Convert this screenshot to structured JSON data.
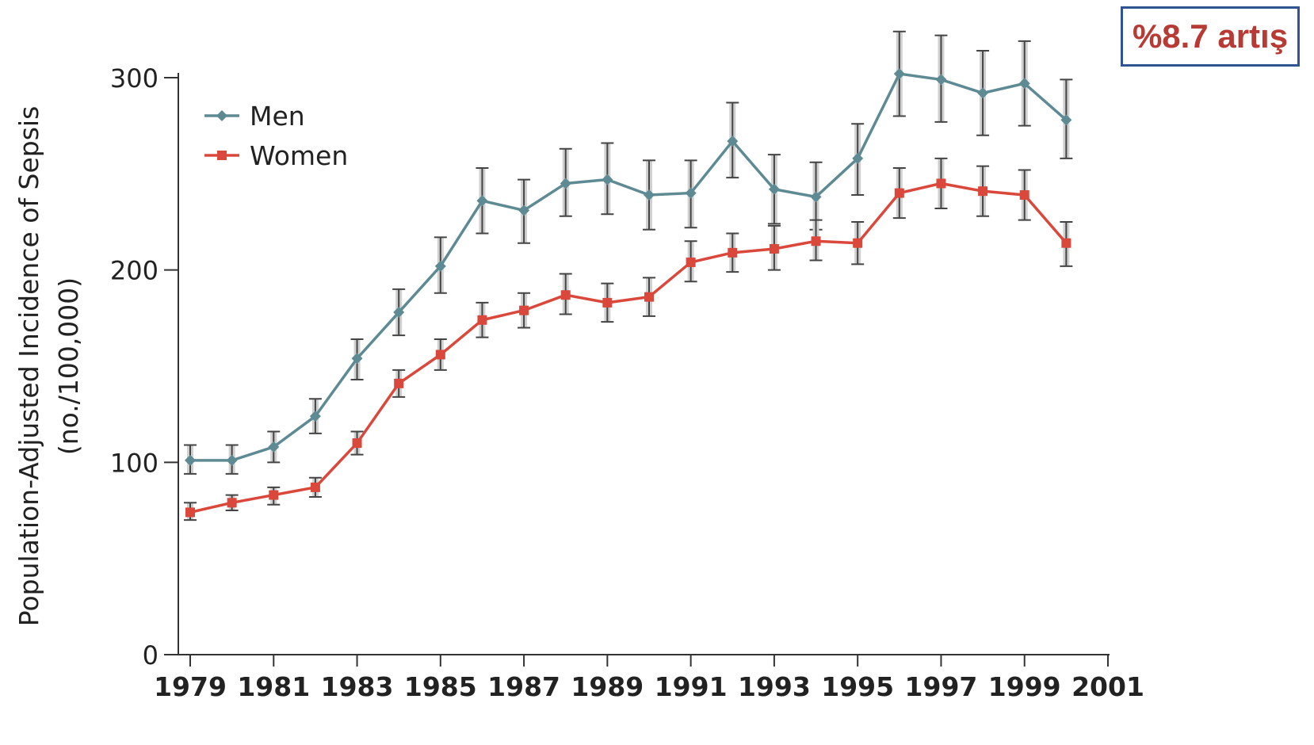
{
  "chart_data": {
    "type": "line",
    "title": "",
    "xlabel": "",
    "ylabel": "Population-Adjusted Incidence of Sepsis",
    "ylabel_line2": "(no./100,000)",
    "xlim": [
      1979,
      2001
    ],
    "ylim": [
      0,
      300
    ],
    "x_ticks": [
      1979,
      1981,
      1983,
      1985,
      1987,
      1989,
      1991,
      1993,
      1995,
      1997,
      1999,
      2001
    ],
    "y_ticks": [
      0,
      100,
      200,
      300
    ],
    "grid": false,
    "legend_position": "top-left",
    "x": [
      1979,
      1980,
      1981,
      1982,
      1983,
      1984,
      1985,
      1986,
      1987,
      1988,
      1989,
      1990,
      1991,
      1992,
      1993,
      1994,
      1995,
      1996,
      1997,
      1998,
      1999,
      2000
    ],
    "series": [
      {
        "name": "Men",
        "color": "#5e8a93",
        "marker": "diamond",
        "values": [
          101,
          101,
          108,
          124,
          154,
          178,
          202,
          236,
          231,
          245,
          247,
          239,
          240,
          267,
          242,
          238,
          258,
          302,
          299,
          292,
          297,
          278
        ],
        "err_low": [
          94,
          94,
          100,
          115,
          143,
          166,
          188,
          219,
          214,
          228,
          229,
          221,
          222,
          248,
          224,
          221,
          239,
          280,
          277,
          270,
          275,
          258
        ],
        "err_high": [
          109,
          109,
          116,
          133,
          164,
          190,
          217,
          253,
          247,
          263,
          266,
          257,
          257,
          287,
          260,
          256,
          276,
          324,
          322,
          314,
          319,
          299
        ]
      },
      {
        "name": "Women",
        "color": "#d9483b",
        "marker": "square",
        "values": [
          74,
          79,
          83,
          87,
          110,
          141,
          156,
          174,
          179,
          187,
          183,
          186,
          204,
          209,
          211,
          215,
          214,
          240,
          245,
          241,
          239,
          214
        ],
        "err_low": [
          70,
          75,
          78,
          82,
          104,
          134,
          148,
          165,
          170,
          177,
          173,
          176,
          194,
          199,
          200,
          205,
          203,
          227,
          232,
          228,
          226,
          202
        ],
        "err_high": [
          79,
          83,
          87,
          92,
          116,
          148,
          164,
          183,
          188,
          198,
          193,
          196,
          215,
          219,
          223,
          226,
          225,
          253,
          258,
          254,
          252,
          225
        ]
      }
    ]
  },
  "annotation": {
    "text": "%8.7 artış",
    "color": "#b83a34",
    "border_color": "#2e5590"
  }
}
